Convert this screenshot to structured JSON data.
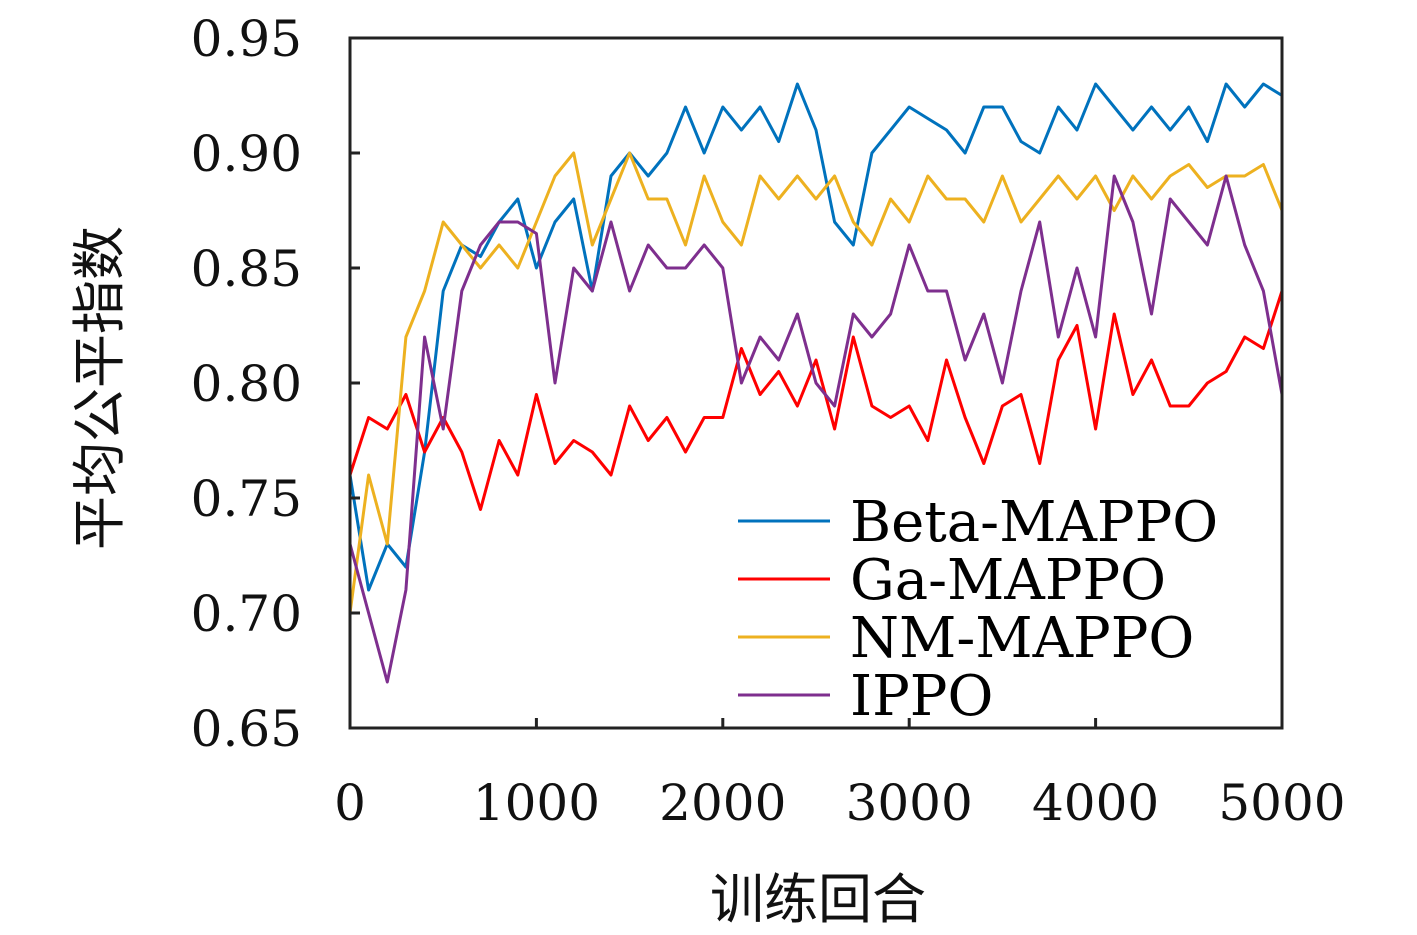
{
  "chart_data": {
    "type": "line",
    "title": "",
    "xlabel": "训练回合",
    "ylabel": "平均公平指数",
    "xlim": [
      0,
      5000
    ],
    "ylim": [
      0.65,
      0.95
    ],
    "xticks": [
      0,
      1000,
      2000,
      3000,
      4000,
      5000
    ],
    "xtick_labels": [
      "0",
      "1000",
      "2000",
      "3000",
      "4000",
      "5000"
    ],
    "yticks": [
      0.65,
      0.7,
      0.75,
      0.8,
      0.85,
      0.9,
      0.95
    ],
    "ytick_labels": [
      "0.65",
      "0.70",
      "0.75",
      "0.80",
      "0.85",
      "0.90",
      "0.95"
    ],
    "grid": false,
    "legend_position": "bottom-right",
    "x_step": 100,
    "series": [
      {
        "name": "Beta-MAPPO",
        "color": "#0072BD",
        "values": [
          0.76,
          0.71,
          0.73,
          0.72,
          0.77,
          0.84,
          0.86,
          0.855,
          0.87,
          0.88,
          0.85,
          0.87,
          0.88,
          0.84,
          0.89,
          0.9,
          0.89,
          0.9,
          0.92,
          0.9,
          0.92,
          0.91,
          0.92,
          0.905,
          0.93,
          0.91,
          0.87,
          0.86,
          0.9,
          0.91,
          0.92,
          0.915,
          0.91,
          0.9,
          0.92,
          0.92,
          0.905,
          0.9,
          0.92,
          0.91,
          0.93,
          0.92,
          0.91,
          0.92,
          0.91,
          0.92,
          0.905,
          0.93,
          0.92,
          0.93,
          0.925
        ]
      },
      {
        "name": "Ga-MAPPO",
        "color": "#FF0000",
        "values": [
          0.76,
          0.785,
          0.78,
          0.795,
          0.77,
          0.785,
          0.77,
          0.745,
          0.775,
          0.76,
          0.795,
          0.765,
          0.775,
          0.77,
          0.76,
          0.79,
          0.775,
          0.785,
          0.77,
          0.785,
          0.785,
          0.815,
          0.795,
          0.805,
          0.79,
          0.81,
          0.78,
          0.82,
          0.79,
          0.785,
          0.79,
          0.775,
          0.81,
          0.785,
          0.765,
          0.79,
          0.795,
          0.765,
          0.81,
          0.825,
          0.78,
          0.83,
          0.795,
          0.81,
          0.79,
          0.79,
          0.8,
          0.805,
          0.82,
          0.815,
          0.84
        ]
      },
      {
        "name": "NM-MAPPO",
        "color": "#EDB120",
        "values": [
          0.7,
          0.76,
          0.73,
          0.82,
          0.84,
          0.87,
          0.86,
          0.85,
          0.86,
          0.85,
          0.87,
          0.89,
          0.9,
          0.86,
          0.88,
          0.9,
          0.88,
          0.88,
          0.86,
          0.89,
          0.87,
          0.86,
          0.89,
          0.88,
          0.89,
          0.88,
          0.89,
          0.87,
          0.86,
          0.88,
          0.87,
          0.89,
          0.88,
          0.88,
          0.87,
          0.89,
          0.87,
          0.88,
          0.89,
          0.88,
          0.89,
          0.875,
          0.89,
          0.88,
          0.89,
          0.895,
          0.885,
          0.89,
          0.89,
          0.895,
          0.875
        ]
      },
      {
        "name": "IPPO",
        "color": "#7E2F8E",
        "values": [
          0.73,
          0.7,
          0.67,
          0.71,
          0.82,
          0.78,
          0.84,
          0.86,
          0.87,
          0.87,
          0.865,
          0.8,
          0.85,
          0.84,
          0.87,
          0.84,
          0.86,
          0.85,
          0.85,
          0.86,
          0.85,
          0.8,
          0.82,
          0.81,
          0.83,
          0.8,
          0.79,
          0.83,
          0.82,
          0.83,
          0.86,
          0.84,
          0.84,
          0.81,
          0.83,
          0.8,
          0.84,
          0.87,
          0.82,
          0.85,
          0.82,
          0.89,
          0.87,
          0.83,
          0.88,
          0.87,
          0.86,
          0.89,
          0.86,
          0.84,
          0.795
        ]
      }
    ]
  }
}
